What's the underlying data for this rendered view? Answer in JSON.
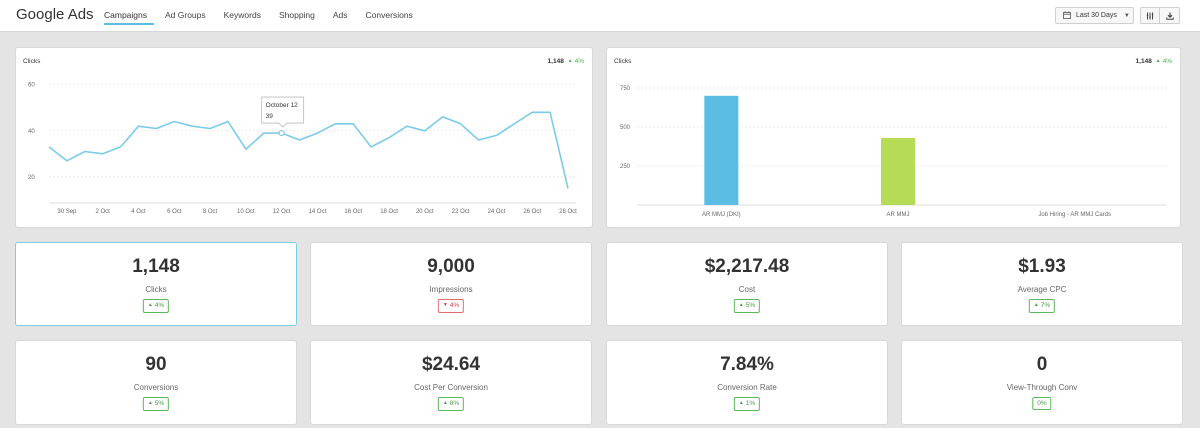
{
  "header": {
    "brand": "Google Ads",
    "tabs": [
      {
        "label": "Campaigns",
        "active": true
      },
      {
        "label": "Ad Groups",
        "active": false
      },
      {
        "label": "Keywords",
        "active": false
      },
      {
        "label": "Shopping",
        "active": false
      },
      {
        "label": "Ads",
        "active": false
      },
      {
        "label": "Conversions",
        "active": false
      }
    ],
    "date_range": "Last 30 Days",
    "icons": {
      "calendar": "calendar-icon",
      "columns": "columns-icon",
      "download": "download-icon"
    }
  },
  "line_panel": {
    "title": "Clicks",
    "total": "1,148",
    "change": "4%",
    "change_direction": "up",
    "tooltip": {
      "date": "October 12",
      "value": "39"
    }
  },
  "bar_panel": {
    "title": "Clicks",
    "total": "1,148",
    "change": "4%",
    "change_direction": "up"
  },
  "chart_data": [
    {
      "type": "line",
      "title": "Clicks",
      "ylim": [
        10,
        62
      ],
      "yticks": [
        20,
        40,
        60
      ],
      "xticks": [
        "30 Sep",
        "2 Oct",
        "4 Oct",
        "6 Oct",
        "8 Oct",
        "10 Oct",
        "12 Oct",
        "14 Oct",
        "16 Oct",
        "18 Oct",
        "20 Oct",
        "22 Oct",
        "24 Oct",
        "26 Oct",
        "28 Oct"
      ],
      "series": [
        {
          "name": "Clicks",
          "color": "#7ccbe8",
          "values": [
            33,
            27,
            31,
            30,
            33,
            42,
            41,
            44,
            42,
            41,
            44,
            32,
            39,
            39,
            36,
            39,
            43,
            43,
            33,
            37,
            42,
            40,
            46,
            43,
            36,
            38,
            43,
            48,
            48,
            15
          ]
        }
      ],
      "highlight_index": 13,
      "grid": true
    },
    {
      "type": "bar",
      "title": "Clicks",
      "ylim": [
        0,
        750
      ],
      "yticks": [
        250,
        500,
        750
      ],
      "categories": [
        "AR MMJ (DKI)",
        "AR MMJ",
        "Job Hiring - AR MMJ Cards"
      ],
      "values": [
        700,
        430,
        0
      ],
      "colors": [
        "#5bbce4",
        "#b5db57",
        "#cccccc"
      ],
      "grid": true
    }
  ],
  "cards": [
    {
      "value": "1,148",
      "label": "Clicks",
      "change": "4%",
      "direction": "up",
      "selected": true
    },
    {
      "value": "9,000",
      "label": "Impressions",
      "change": "4%",
      "direction": "down",
      "selected": false
    },
    {
      "value": "$2,217.48",
      "label": "Cost",
      "change": "5%",
      "direction": "up",
      "selected": false
    },
    {
      "value": "$1.93",
      "label": "Average CPC",
      "change": "7%",
      "direction": "up",
      "selected": false
    },
    {
      "value": "90",
      "label": "Conversions",
      "change": "5%",
      "direction": "up",
      "selected": false
    },
    {
      "value": "$24.64",
      "label": "Cost Per Conversion",
      "change": "8%",
      "direction": "up",
      "selected": false
    },
    {
      "value": "7.84%",
      "label": "Conversion Rate",
      "change": "1%",
      "direction": "up",
      "selected": false
    },
    {
      "value": "0",
      "label": "View-Through Conv",
      "change": "0%",
      "direction": "neutral",
      "selected": false
    }
  ]
}
